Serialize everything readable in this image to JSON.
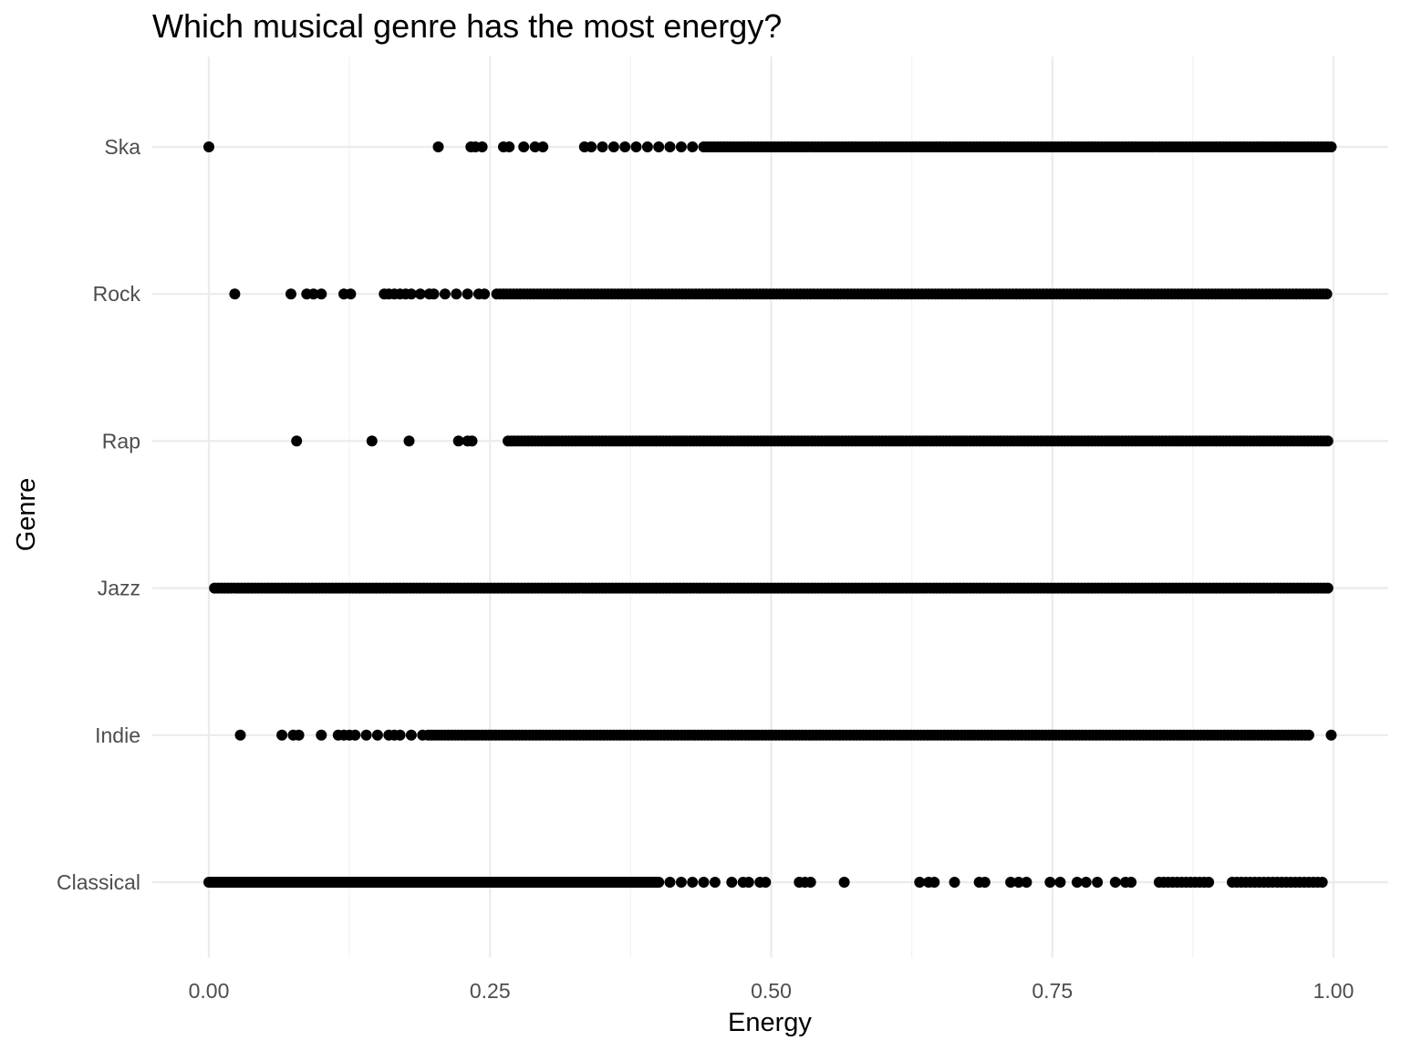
{
  "chart_data": {
    "type": "scatter",
    "title": "Which musical genre has the most energy?",
    "xlabel": "Energy",
    "ylabel": "Genre",
    "xlim": [
      0,
      1
    ],
    "x_ticks": [
      "0.00",
      "0.25",
      "0.50",
      "0.75",
      "1.00"
    ],
    "x_tick_values": [
      0,
      0.25,
      0.5,
      0.75,
      1
    ],
    "categories": [
      "Classical",
      "Indie",
      "Jazz",
      "Rap",
      "Rock",
      "Ska"
    ],
    "grid": true,
    "point_color": "#000000",
    "gridline_color": "#ebebeb",
    "series": [
      {
        "category": "Ska",
        "x": [
          0.0,
          0.204,
          0.233,
          0.237,
          0.243,
          0.262,
          0.267,
          0.28,
          0.29,
          0.297,
          0.334,
          0.34,
          0.35,
          0.36,
          0.37,
          0.38,
          0.39,
          0.4,
          0.41,
          0.42,
          0.43,
          [
            0.44,
            1.0,
            0.003
          ]
        ]
      },
      {
        "category": "Rock",
        "x": [
          0.023,
          0.073,
          0.087,
          0.093,
          0.1,
          0.12,
          0.126,
          0.156,
          0.16,
          0.165,
          0.17,
          0.175,
          0.18,
          0.188,
          0.196,
          0.2,
          0.21,
          0.22,
          0.23,
          0.24,
          0.245,
          [
            0.256,
            0.995,
            0.003
          ]
        ]
      },
      {
        "category": "Rap",
        "x": [
          0.078,
          0.145,
          0.178,
          0.222,
          0.23,
          0.234,
          [
            0.266,
            0.995,
            0.003
          ]
        ]
      },
      {
        "category": "Jazz",
        "x": [
          [
            0.005,
            0.997,
            0.003
          ]
        ]
      },
      {
        "category": "Indie",
        "x": [
          0.028,
          0.065,
          0.075,
          0.08,
          0.1,
          0.115,
          0.12,
          0.125,
          0.13,
          0.14,
          0.15,
          0.16,
          0.165,
          0.17,
          0.18,
          0.19,
          [
            0.195,
            0.98,
            0.003
          ],
          0.998
        ]
      },
      {
        "category": "Classical",
        "x": [
          [
            0.0,
            0.4,
            0.002
          ],
          0.41,
          0.42,
          0.43,
          0.44,
          0.45,
          0.465,
          0.475,
          0.48,
          0.49,
          0.495,
          0.525,
          0.53,
          0.535,
          0.565,
          0.632,
          0.64,
          0.645,
          0.663,
          0.685,
          0.69,
          0.713,
          0.72,
          0.727,
          0.748,
          0.757,
          0.772,
          0.78,
          0.79,
          0.806,
          0.815,
          0.82,
          [
            0.845,
            0.89,
            0.004
          ],
          [
            0.91,
            0.99,
            0.004
          ]
        ]
      }
    ]
  }
}
